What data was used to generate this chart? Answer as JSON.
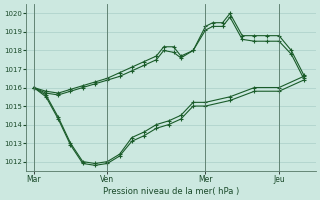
{
  "xlabel": "Pression niveau de la mer( hPa )",
  "ylim": [
    1011.5,
    1020.5
  ],
  "yticks": [
    1012,
    1013,
    1014,
    1015,
    1016,
    1017,
    1018,
    1019,
    1020
  ],
  "background_color": "#cce8e0",
  "grid_color": "#aacfc8",
  "line_color": "#1a5c2a",
  "marker_color": "#1a5c2a",
  "xtick_labels": [
    "Mar",
    "Ven",
    "Mer",
    "Jeu"
  ],
  "xtick_positions": [
    0,
    3,
    7,
    10
  ],
  "vline_positions": [
    0,
    3,
    7,
    10
  ],
  "xlim": [
    -0.3,
    11.5
  ],
  "series": [
    {
      "x": [
        0,
        0.5,
        1,
        1.5,
        2,
        2.5,
        3,
        3.5,
        4,
        4.5,
        5,
        5.3,
        5.7,
        6,
        6.5,
        7,
        7.3,
        7.7,
        8,
        8.5,
        9,
        9.5,
        10,
        10.5,
        11
      ],
      "y": [
        1016.0,
        1015.8,
        1015.7,
        1015.9,
        1016.1,
        1016.3,
        1016.5,
        1016.8,
        1017.1,
        1017.4,
        1017.7,
        1018.2,
        1018.2,
        1017.7,
        1018.0,
        1019.3,
        1019.5,
        1019.5,
        1020.0,
        1018.8,
        1018.8,
        1018.8,
        1018.8,
        1018.0,
        1016.7
      ]
    },
    {
      "x": [
        0,
        0.5,
        1,
        1.5,
        2,
        2.5,
        3,
        3.5,
        4,
        4.5,
        5,
        5.3,
        5.7,
        6,
        6.5,
        7,
        7.3,
        7.7,
        8,
        8.5,
        9,
        9.5,
        10,
        10.5,
        11
      ],
      "y": [
        1016.0,
        1015.7,
        1015.6,
        1015.8,
        1016.0,
        1016.2,
        1016.4,
        1016.6,
        1016.9,
        1017.2,
        1017.5,
        1018.0,
        1017.9,
        1017.6,
        1018.0,
        1019.1,
        1019.3,
        1019.3,
        1019.8,
        1018.6,
        1018.5,
        1018.5,
        1018.5,
        1017.8,
        1016.5
      ]
    },
    {
      "x": [
        0,
        0.5,
        1,
        1.5,
        2,
        2.5,
        3,
        3.5,
        4,
        4.5,
        5,
        5.5,
        6,
        6.5,
        7,
        8,
        9,
        10,
        11
      ],
      "y": [
        1016.0,
        1015.6,
        1014.4,
        1013.0,
        1012.0,
        1011.9,
        1012.0,
        1012.4,
        1013.3,
        1013.6,
        1014.0,
        1014.2,
        1014.5,
        1015.2,
        1015.2,
        1015.5,
        1016.0,
        1016.0,
        1016.6
      ]
    },
    {
      "x": [
        0,
        0.5,
        1,
        1.5,
        2,
        2.5,
        3,
        3.5,
        4,
        4.5,
        5,
        5.5,
        6,
        6.5,
        7,
        8,
        9,
        10,
        11
      ],
      "y": [
        1016.0,
        1015.5,
        1014.3,
        1012.9,
        1011.9,
        1011.8,
        1011.9,
        1012.3,
        1013.1,
        1013.4,
        1013.8,
        1014.0,
        1014.3,
        1015.0,
        1015.0,
        1015.3,
        1015.8,
        1015.8,
        1016.4
      ]
    }
  ]
}
